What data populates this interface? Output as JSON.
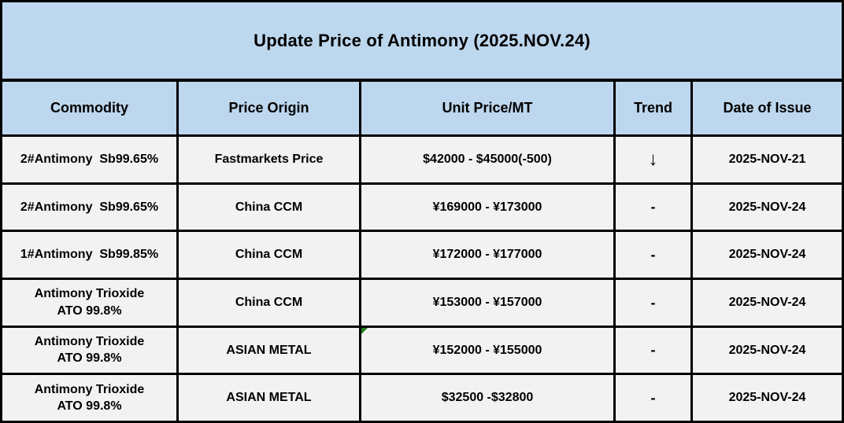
{
  "title": "Update Price of Antimony (2025.NOV.24)",
  "colors": {
    "title_header_bg": "#BDD7EE",
    "row_bg": "#F2F2F2",
    "border": "#000000",
    "corner_marker_green": "#1E7E1E"
  },
  "table": {
    "columns": [
      "Commodity",
      "Price Origin",
      "Unit Price/MT",
      "Trend",
      "Date of Issue"
    ],
    "rows": [
      {
        "commodity": "2#Antimony  Sb99.65%",
        "origin": "Fastmarkets Price",
        "price": "$42000 - $45000(-500)",
        "trend": "↓",
        "trend_icon": "arrow-down-icon",
        "date": "2025-NOV-21",
        "marker": false
      },
      {
        "commodity": "2#Antimony  Sb99.65%",
        "origin": "China CCM",
        "price": "¥169000 - ¥173000",
        "trend": "-",
        "trend_icon": "dash",
        "date": "2025-NOV-24",
        "marker": false
      },
      {
        "commodity": "1#Antimony  Sb99.85%",
        "origin": "China CCM",
        "price": "¥172000 - ¥177000",
        "trend": "-",
        "trend_icon": "dash",
        "date": "2025-NOV-24",
        "marker": false
      },
      {
        "commodity": "Antimony Trioxide\nATO 99.8%",
        "origin": "China CCM",
        "price": "¥153000 - ¥157000",
        "trend": "-",
        "trend_icon": "dash",
        "date": "2025-NOV-24",
        "marker": false
      },
      {
        "commodity": "Antimony Trioxide\nATO 99.8%",
        "origin": "ASIAN METAL",
        "price": "¥152000 - ¥155000",
        "trend": "-",
        "trend_icon": "dash",
        "date": "2025-NOV-24",
        "marker": true
      },
      {
        "commodity": "Antimony Trioxide\nATO 99.8%",
        "origin": "ASIAN METAL",
        "price": "$32500 -$32800",
        "trend": "-",
        "trend_icon": "dash",
        "date": "2025-NOV-24",
        "marker": false
      }
    ]
  }
}
